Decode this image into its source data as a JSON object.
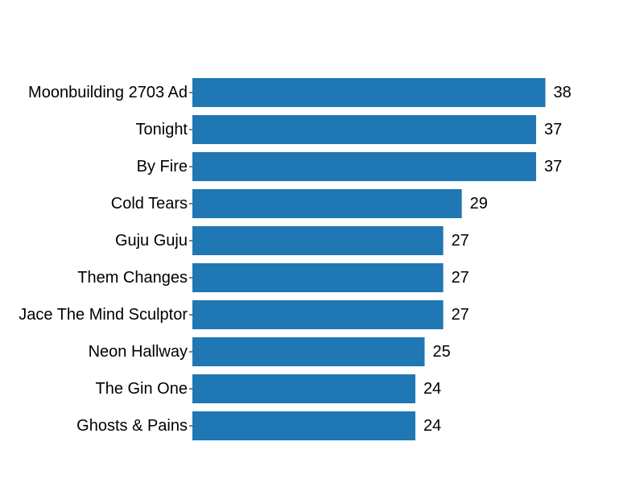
{
  "chart_data": {
    "type": "bar",
    "orientation": "horizontal",
    "title": "",
    "xlabel": "",
    "ylabel": "",
    "categories": [
      "Moonbuilding 2703 Ad",
      "Tonight",
      "By Fire",
      "Cold Tears",
      "Guju Guju",
      "Them Changes",
      "Jace The Mind Sculptor",
      "Neon Hallway",
      "The Gin One",
      "Ghosts & Pains"
    ],
    "values": [
      38,
      37,
      37,
      29,
      27,
      27,
      27,
      25,
      24,
      24
    ],
    "xlim": [
      0,
      40
    ],
    "grid": false,
    "legend": "none",
    "bar_color": "#1f77b4",
    "data_labels": true
  }
}
